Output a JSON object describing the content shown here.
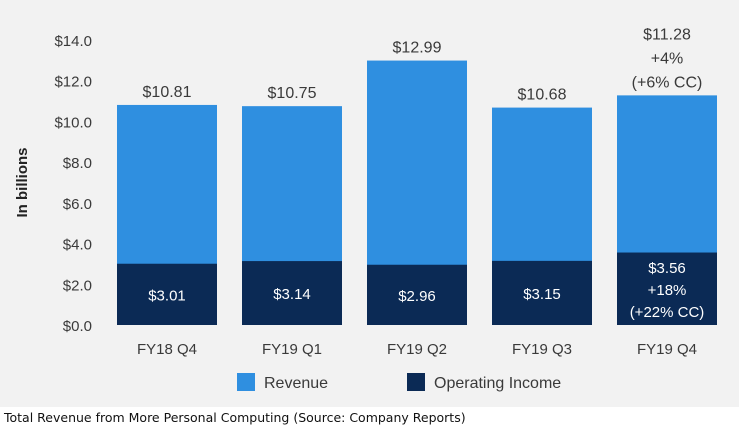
{
  "chart_data": {
    "type": "bar",
    "stacking": "overlay",
    "categories": [
      "FY18 Q4",
      "FY19 Q1",
      "FY19 Q2",
      "FY19 Q3",
      "FY19 Q4"
    ],
    "series": [
      {
        "name": "Revenue",
        "color": "#2f8fe0",
        "values": [
          10.81,
          10.75,
          12.99,
          10.68,
          11.28
        ],
        "labels": [
          [
            "$10.81"
          ],
          [
            "$10.75"
          ],
          [
            "$12.99"
          ],
          [
            "$10.68"
          ],
          [
            "$11.28",
            "+4%",
            "(+6% CC)"
          ]
        ]
      },
      {
        "name": "Operating Income",
        "color": "#0b2a55",
        "values": [
          3.01,
          3.14,
          2.96,
          3.15,
          3.56
        ],
        "labels": [
          [
            "$3.01"
          ],
          [
            "$3.14"
          ],
          [
            "$2.96"
          ],
          [
            "$3.15"
          ],
          [
            "$3.56",
            "+18%",
            "(+22% CC)"
          ]
        ]
      }
    ],
    "ylabel": "In billions",
    "ylim": [
      0,
      14
    ],
    "yticks": [
      0,
      2,
      4,
      6,
      8,
      10,
      12,
      14
    ],
    "ytick_labels": [
      "$0.0",
      "$2.0",
      "$4.0",
      "$6.0",
      "$8.0",
      "$10.0",
      "$12.0",
      "$14.0"
    ],
    "grid": false,
    "legend_position": "bottom-center"
  },
  "caption": "Total Revenue from More Personal Computing (Source: Company Reports)"
}
